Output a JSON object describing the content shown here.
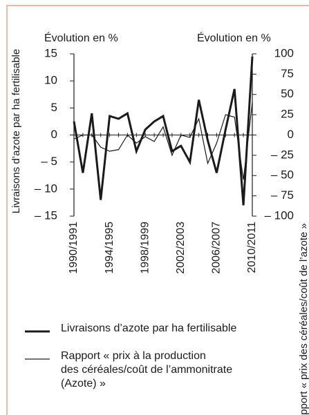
{
  "chart_data": {
    "type": "line",
    "y_title": "Évolution en %",
    "y2_title": "Évolution en %",
    "y_label": "Livraisons d’azote par ha fertilisable",
    "y2_label": "Rapport « prix des céréales/coût de l’azote »",
    "categories": [
      "1990/1991",
      null,
      null,
      null,
      "1994/1995",
      null,
      null,
      null,
      "1998/1999",
      null,
      null,
      null,
      "2002/2003",
      null,
      null,
      null,
      "2006/2007",
      null,
      null,
      null,
      "2010/2011"
    ],
    "series": [
      {
        "name": "Livraisons d’azote par ha fertilisable",
        "color": "#1a1a1a",
        "values": [
          2.5,
          -7,
          4,
          -12,
          3.5,
          3,
          4,
          -3,
          1,
          2.5,
          3.5,
          -3,
          -2,
          -5,
          6.5,
          -1,
          -7,
          1,
          8.5,
          -13,
          14.5
        ]
      },
      {
        "name": "Rapport « prix à la production\ndes céréales/coût de l’ammonitrate\n(Azote) »",
        "color": "#1a1a1a",
        "axis": "y2",
        "values": [
          -5,
          0,
          0,
          -15,
          -20,
          -18,
          0,
          -10,
          -2,
          -8,
          10,
          -25,
          0,
          -3,
          20,
          -35,
          -10,
          25,
          22,
          -55,
          40
        ]
      }
    ],
    "ylim": [
      -15,
      15
    ],
    "yticks": [
      {
        "value": -15,
        "label": "– 15"
      },
      {
        "value": -10,
        "label": "– 10"
      },
      {
        "value": -5,
        "label": "– 5"
      },
      0,
      5,
      10,
      15
    ],
    "y2lim": [
      -100,
      100
    ],
    "y2ticks": [
      {
        "value": -100,
        "label": "– 100"
      },
      {
        "value": -75,
        "label": "– 75"
      },
      {
        "value": -50,
        "label": "– 50"
      },
      {
        "value": -25,
        "label": "– 25"
      },
      0,
      25,
      50,
      75,
      100
    ]
  }
}
